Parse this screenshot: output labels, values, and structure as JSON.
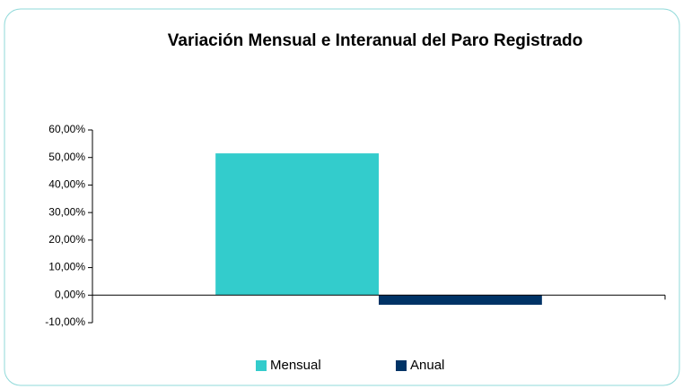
{
  "chart_data": {
    "type": "bar",
    "title": "Variación Mensual e Interanual del Paro Registrado",
    "categories": [
      null
    ],
    "series": [
      {
        "name": "Mensual",
        "color": "#33cccc",
        "values": [
          51.5
        ]
      },
      {
        "name": "Anual",
        "color": "#003366",
        "values": [
          -3.5
        ]
      }
    ],
    "ylim": [
      -10,
      60
    ],
    "yticks": [
      {
        "value": -10,
        "label": "-10,00%"
      },
      {
        "value": 0,
        "label": "0,00%"
      },
      {
        "value": 10,
        "label": "10,00%"
      },
      {
        "value": 20,
        "label": "20,00%"
      },
      {
        "value": 30,
        "label": "30,00%"
      },
      {
        "value": 40,
        "label": "40,00%"
      },
      {
        "value": 50,
        "label": "50,00%"
      },
      {
        "value": 60,
        "label": "60,00%"
      }
    ],
    "grid": false,
    "legend": "bottom"
  }
}
